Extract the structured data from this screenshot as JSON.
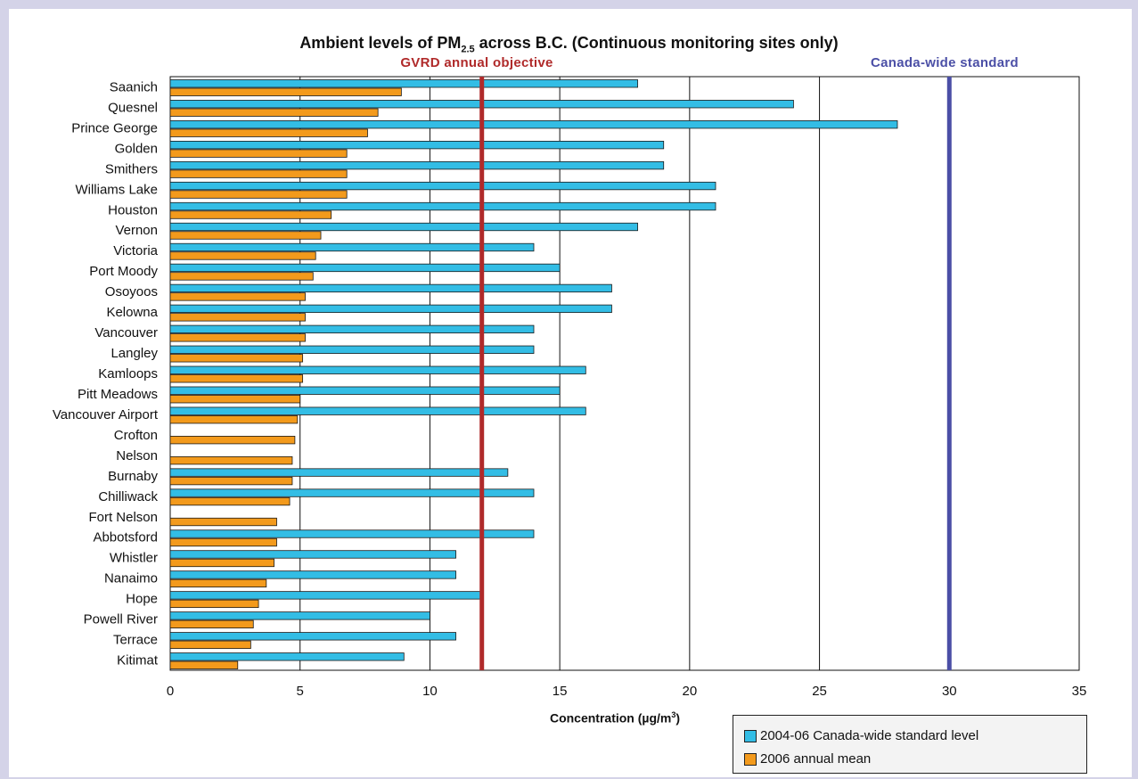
{
  "chart_data": {
    "type": "bar",
    "orientation": "horizontal",
    "title_main": "Ambient levels of PM",
    "title_sub": "2.5",
    "title_rest": " across B.C. (Continuous monitoring sites only)",
    "xlabel_main": "Concentration (µg/m",
    "xlabel_sup": "3",
    "xlabel_end": ")",
    "xlim": [
      0,
      35
    ],
    "xticks": [
      "0",
      "5",
      "10",
      "15",
      "20",
      "25",
      "30",
      "35"
    ],
    "grid": "vertical",
    "legend_position": "bottom-right",
    "reference_lines": [
      {
        "label": "GVRD annual objective",
        "value": 12,
        "color": "#b02a2a"
      },
      {
        "label": "Canada-wide standard",
        "value": 30,
        "color": "#4b4fa6"
      }
    ],
    "categories": [
      "Saanich",
      "Quesnel",
      "Prince George",
      "Golden",
      "Smithers",
      "Williams Lake",
      "Houston",
      "Vernon",
      "Victoria",
      "Port Moody",
      "Osoyoos",
      "Kelowna",
      "Vancouver",
      "Langley",
      "Kamloops",
      "Pitt Meadows",
      "Vancouver Airport",
      "Crofton",
      "Nelson",
      "Burnaby",
      "Chilliwack",
      "Fort Nelson",
      "Abbotsford",
      "Whistler",
      "Nanaimo",
      "Hope",
      "Powell River",
      "Terrace",
      "Kitimat"
    ],
    "series": [
      {
        "name": "2004-06 Canada-wide standard level",
        "color": "#33bde5",
        "values": [
          18,
          24,
          28,
          19,
          19,
          21,
          21,
          18,
          14,
          15,
          17,
          17,
          14,
          14,
          16,
          15,
          16,
          null,
          null,
          13,
          14,
          null,
          14,
          11,
          11,
          12,
          10,
          11,
          9
        ]
      },
      {
        "name": "2006 annual mean",
        "color": "#f39a1c",
        "values": [
          8.9,
          8.0,
          7.6,
          6.8,
          6.8,
          6.8,
          6.2,
          5.8,
          5.6,
          5.5,
          5.2,
          5.2,
          5.2,
          5.1,
          5.1,
          5.0,
          4.9,
          4.8,
          4.7,
          4.7,
          4.6,
          4.1,
          4.1,
          4.0,
          3.7,
          3.4,
          3.2,
          3.1,
          2.6
        ]
      }
    ]
  }
}
